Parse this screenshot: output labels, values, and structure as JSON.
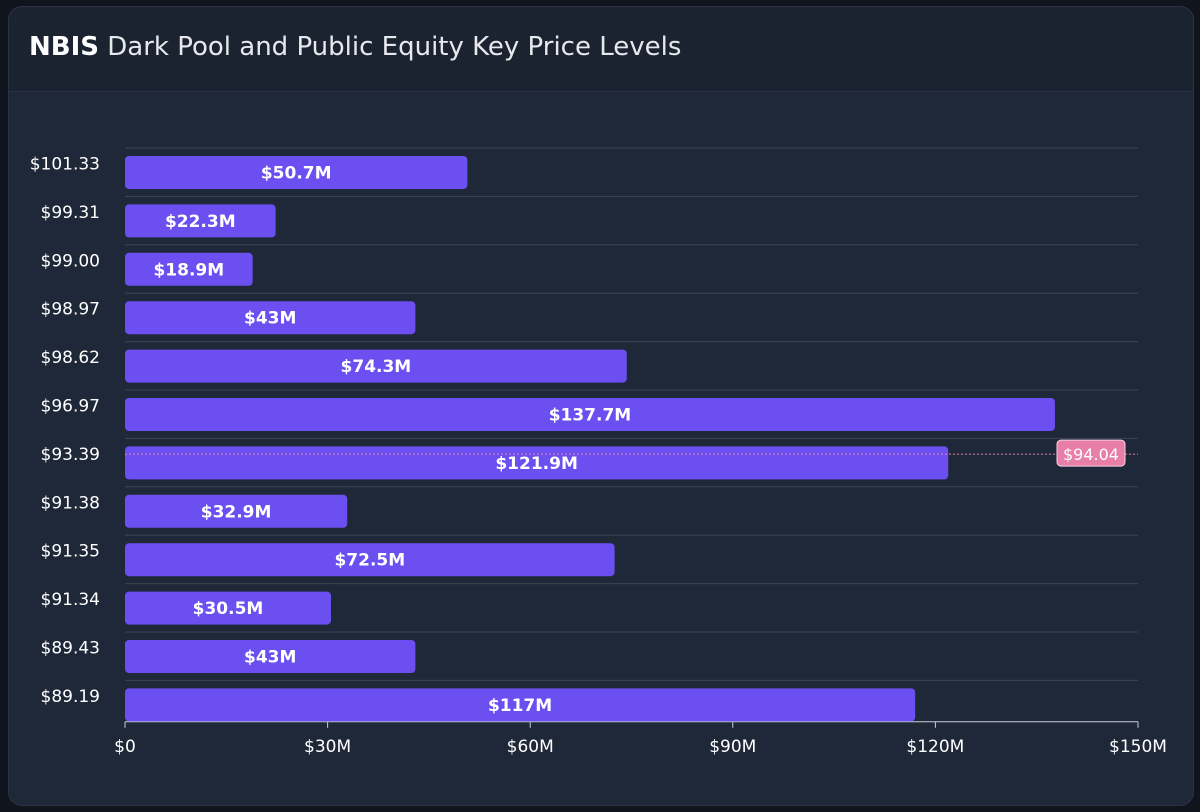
{
  "header": {
    "ticker": "NBIS",
    "title": "Dark Pool and Public Equity Key Price Levels"
  },
  "colors": {
    "bar": "#6b4ff0",
    "marker": "#e87fa8",
    "card_bg": "#1f2838",
    "grid": "#3a4556",
    "text": "#ffffff"
  },
  "chart_data": {
    "type": "bar",
    "orientation": "horizontal",
    "title": "NBIS Dark Pool and Public Equity Key Price Levels",
    "categories": [
      "$101.33",
      "$99.31",
      "$99.00",
      "$98.97",
      "$98.62",
      "$96.97",
      "$93.39",
      "$91.38",
      "$91.35",
      "$91.34",
      "$89.43",
      "$89.19"
    ],
    "values": [
      50.7,
      22.3,
      18.9,
      43,
      74.3,
      137.7,
      121.9,
      32.9,
      72.5,
      30.5,
      43,
      117
    ],
    "value_labels": [
      "$50.7M",
      "$22.3M",
      "$18.9M",
      "$43M",
      "$74.3M",
      "$137.7M",
      "$121.9M",
      "$32.9M",
      "$72.5M",
      "$30.5M",
      "$43M",
      "$117M"
    ],
    "x_unit": "millions USD",
    "xlim": [
      0,
      150
    ],
    "x_ticks": [
      0,
      30,
      60,
      90,
      120,
      150
    ],
    "x_tick_labels": [
      "$0",
      "$30M",
      "$60M",
      "$90M",
      "$120M",
      "$150M"
    ],
    "grid": true,
    "legend": "none",
    "current_price": {
      "label": "$94.04",
      "value": 94.04
    }
  }
}
